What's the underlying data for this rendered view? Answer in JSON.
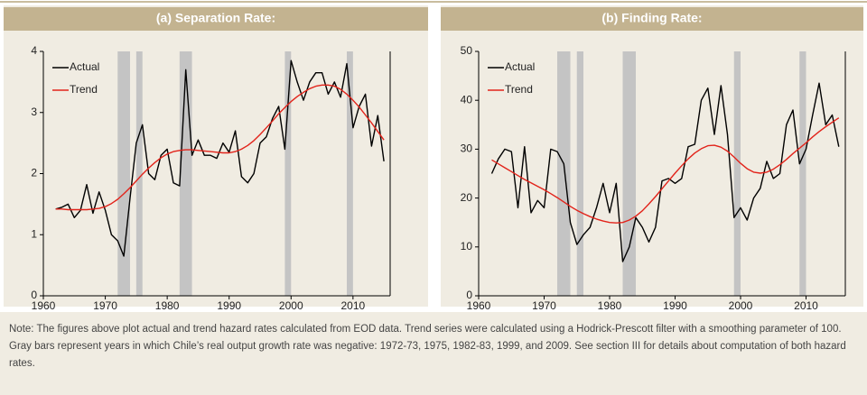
{
  "chart_data": [
    {
      "type": "line",
      "title": "(a) Separation Rate:",
      "x": [
        1962,
        1963,
        1964,
        1965,
        1966,
        1967,
        1968,
        1969,
        1970,
        1971,
        1972,
        1973,
        1974,
        1975,
        1976,
        1977,
        1978,
        1979,
        1980,
        1981,
        1982,
        1983,
        1984,
        1985,
        1986,
        1987,
        1988,
        1989,
        1990,
        1991,
        1992,
        1993,
        1994,
        1995,
        1996,
        1997,
        1998,
        1999,
        2000,
        2001,
        2002,
        2003,
        2004,
        2005,
        2006,
        2007,
        2008,
        2009,
        2010,
        2011,
        2012,
        2013,
        2014,
        2015
      ],
      "series": [
        {
          "name": "Actual",
          "color": "#000000",
          "values": [
            1.42,
            1.45,
            1.5,
            1.28,
            1.4,
            1.82,
            1.35,
            1.7,
            1.4,
            1.0,
            0.9,
            0.65,
            1.6,
            2.5,
            2.8,
            2.0,
            1.9,
            2.3,
            2.4,
            1.85,
            1.8,
            3.7,
            2.3,
            2.55,
            2.3,
            2.3,
            2.25,
            2.5,
            2.35,
            2.7,
            1.95,
            1.85,
            2.0,
            2.5,
            2.6,
            2.9,
            3.1,
            2.4,
            3.85,
            3.5,
            3.2,
            3.5,
            3.65,
            3.65,
            3.3,
            3.5,
            3.25,
            3.8,
            2.75,
            3.1,
            3.3,
            2.45,
            2.95,
            2.2
          ]
        },
        {
          "name": "Trend",
          "color": "#e2231a",
          "values": [
            1.42,
            1.42,
            1.41,
            1.41,
            1.41,
            1.41,
            1.42,
            1.43,
            1.46,
            1.51,
            1.58,
            1.67,
            1.77,
            1.88,
            1.99,
            2.09,
            2.18,
            2.26,
            2.32,
            2.36,
            2.38,
            2.39,
            2.39,
            2.38,
            2.37,
            2.36,
            2.35,
            2.34,
            2.34,
            2.36,
            2.4,
            2.46,
            2.54,
            2.64,
            2.75,
            2.86,
            2.98,
            3.08,
            3.18,
            3.26,
            3.33,
            3.39,
            3.43,
            3.45,
            3.45,
            3.43,
            3.38,
            3.3,
            3.2,
            3.09,
            2.96,
            2.83,
            2.69,
            2.55
          ]
        }
      ],
      "shaded_spans": [
        [
          1972,
          1974
        ],
        [
          1975,
          1976
        ],
        [
          1982,
          1984
        ],
        [
          1999,
          2000
        ],
        [
          2009,
          2010
        ]
      ],
      "shade_color": "#c4c4c4",
      "xlim": [
        1960,
        2016
      ],
      "xticks": [
        1960,
        1970,
        1980,
        1990,
        2000,
        2010
      ],
      "ylim": [
        0,
        4
      ],
      "yticks": [
        0,
        1,
        2,
        3,
        4
      ],
      "legend": "upper left"
    },
    {
      "type": "line",
      "title": "(b) Finding Rate:",
      "x": [
        1962,
        1963,
        1964,
        1965,
        1966,
        1967,
        1968,
        1969,
        1970,
        1971,
        1972,
        1973,
        1974,
        1975,
        1976,
        1977,
        1978,
        1979,
        1980,
        1981,
        1982,
        1983,
        1984,
        1985,
        1986,
        1987,
        1988,
        1989,
        1990,
        1991,
        1992,
        1993,
        1994,
        1995,
        1996,
        1997,
        1998,
        1999,
        2000,
        2001,
        2002,
        2003,
        2004,
        2005,
        2006,
        2007,
        2008,
        2009,
        2010,
        2011,
        2012,
        2013,
        2014,
        2015
      ],
      "series": [
        {
          "name": "Actual",
          "color": "#000000",
          "values": [
            25,
            28,
            30,
            29.5,
            18,
            30.5,
            17,
            19.5,
            18,
            30,
            29.5,
            27,
            15,
            10.5,
            12.5,
            14,
            18,
            23,
            17,
            23,
            7,
            10,
            16,
            14,
            11,
            14,
            23.5,
            24,
            23,
            24,
            30.5,
            31,
            40,
            42.5,
            33,
            43,
            33,
            16,
            18,
            15.5,
            20,
            22,
            27.5,
            24,
            25,
            35,
            38,
            27,
            30,
            37,
            43.5,
            35,
            37,
            30.5
          ]
        },
        {
          "name": "Trend",
          "color": "#e2231a",
          "values": [
            27.8,
            27,
            26.2,
            25.4,
            24.6,
            23.8,
            23.1,
            22.4,
            21.7,
            20.9,
            20.1,
            19.2,
            18.3,
            17.5,
            16.8,
            16.2,
            15.7,
            15.3,
            15.0,
            14.9,
            15.0,
            15.5,
            16.3,
            17.4,
            18.8,
            20.3,
            21.9,
            23.5,
            25.1,
            26.6,
            28.0,
            29.2,
            30.1,
            30.7,
            30.8,
            30.4,
            29.6,
            28.4,
            27.1,
            26.0,
            25.3,
            25.1,
            25.3,
            25.9,
            26.8,
            27.9,
            29.1,
            30.2,
            31.3,
            32.5,
            33.6,
            34.6,
            35.5,
            36.4
          ]
        }
      ],
      "shaded_spans": [
        [
          1972,
          1974
        ],
        [
          1975,
          1976
        ],
        [
          1982,
          1984
        ],
        [
          1999,
          2000
        ],
        [
          2009,
          2010
        ]
      ],
      "shade_color": "#c4c4c4",
      "xlim": [
        1960,
        2016
      ],
      "xticks": [
        1960,
        1970,
        1980,
        1990,
        2000,
        2010
      ],
      "ylim": [
        0,
        50
      ],
      "yticks": [
        0,
        10,
        20,
        30,
        40,
        50
      ],
      "legend": "upper left"
    }
  ],
  "note": "Note: The figures above plot actual and trend hazard rates calculated from EOD data. Trend series were calculated using a Hodrick-Prescott filter with a smoothing parameter of 100. Gray bars represent years in which Chile’s real output growth rate was negative: 1972-73, 1975, 1982-83, 1999, and 2009. See section III for details about computation of both hazard rates."
}
